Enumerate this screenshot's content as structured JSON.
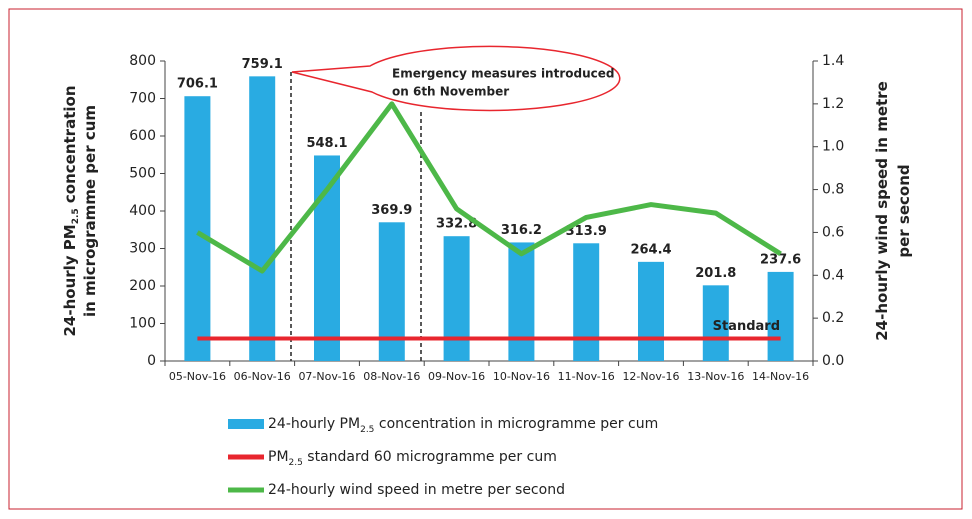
{
  "chart_data": {
    "type": "bar",
    "categories": [
      "05-Nov-16",
      "06-Nov-16",
      "07-Nov-16",
      "08-Nov-16",
      "09-Nov-16",
      "10-Nov-16",
      "11-Nov-16",
      "12-Nov-16",
      "13-Nov-16",
      "14-Nov-16"
    ],
    "series": [
      {
        "name": [
          "24-hourly PM",
          "2.5",
          " concentration in microgramme per cum"
        ],
        "type": "bar",
        "color": "#29abe2",
        "values": [
          706.1,
          759.1,
          548.1,
          369.9,
          332.8,
          316.2,
          313.9,
          264.4,
          201.8,
          237.6
        ]
      },
      {
        "name": [
          "PM",
          "2.5",
          " standard 60 microgramme per cum"
        ],
        "type": "line",
        "color": "#e8262e",
        "values": [
          60,
          60,
          60,
          60,
          60,
          60,
          60,
          60,
          60,
          60
        ]
      },
      {
        "name": [
          "24-hourly wind speed in metre per second"
        ],
        "type": "line",
        "color": "#4db848",
        "axis": "y2",
        "values": [
          0.6,
          0.42,
          0.8,
          1.2,
          0.71,
          0.5,
          0.67,
          0.73,
          0.69,
          0.5
        ]
      }
    ],
    "ylabel": [
      [
        "24-hourly PM",
        "2.5",
        " concentration"
      ],
      [
        "in microgramme per cum"
      ]
    ],
    "y2label": [
      [
        "24-hourly wind speed in metre"
      ],
      [
        "per second"
      ]
    ],
    "ylim": [
      0,
      800
    ],
    "yticks": [
      0,
      100,
      200,
      300,
      400,
      500,
      600,
      700,
      800
    ],
    "y2lim": [
      0,
      1.4
    ],
    "y2ticks": [
      {
        "value": 0,
        "label": "0.0"
      },
      0.2,
      0.4,
      0.6,
      0.8,
      {
        "value": 1,
        "label": "1.0"
      },
      1.2,
      1.4
    ],
    "annotation": [
      "Emergency measures introduced",
      "on 6th November"
    ],
    "standard_label": "Standard"
  }
}
